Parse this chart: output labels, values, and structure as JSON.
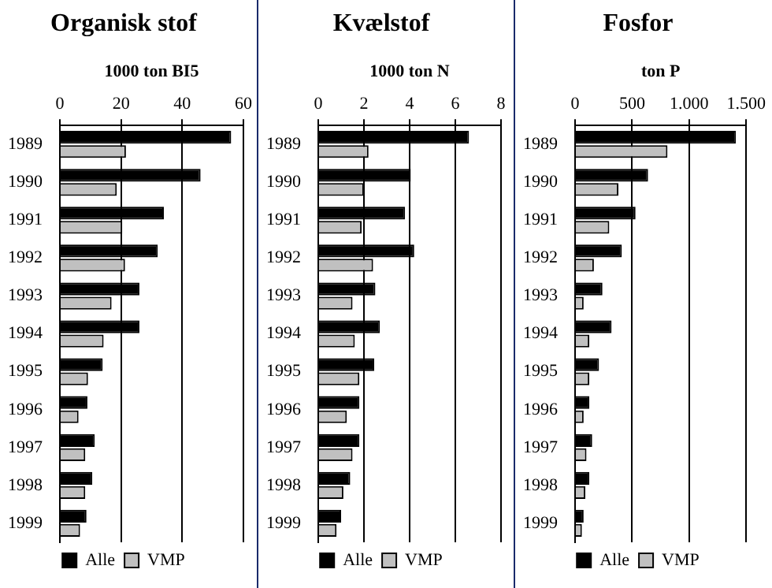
{
  "chart_data": [
    {
      "type": "bar",
      "orientation": "horizontal",
      "title": "Organisk stof",
      "xlabel": "1000 ton BI5",
      "categories": [
        "1989",
        "1990",
        "1991",
        "1992",
        "1993",
        "1994",
        "1995",
        "1996",
        "1997",
        "1998",
        "1999"
      ],
      "series": [
        {
          "name": "Alle",
          "color": "#000000",
          "values": [
            56,
            46,
            34,
            32,
            26,
            26,
            14,
            9,
            11.4,
            10.6,
            8.7
          ]
        },
        {
          "name": "VMP",
          "color": "#c0c0c0",
          "values": [
            21.6,
            18.6,
            20.4,
            21.3,
            16.9,
            14.3,
            9.2,
            6.1,
            8.3,
            8.3,
            6.6
          ]
        }
      ],
      "xlim": [
        0,
        60
      ],
      "xticks": [
        0,
        20,
        40,
        60
      ],
      "grid": "x",
      "legend": "bottom"
    },
    {
      "type": "bar",
      "orientation": "horizontal",
      "title": "Kvælstof",
      "xlabel": "1000 ton N",
      "categories": [
        "1989",
        "1990",
        "1991",
        "1992",
        "1993",
        "1994",
        "1995",
        "1996",
        "1997",
        "1998",
        "1999"
      ],
      "series": [
        {
          "name": "Alle",
          "color": "#000000",
          "values": [
            6.6,
            4.05,
            3.8,
            4.2,
            2.5,
            2.7,
            2.45,
            1.8,
            1.8,
            1.4,
            1.0
          ]
        },
        {
          "name": "VMP",
          "color": "#c0c0c0",
          "values": [
            2.2,
            2.0,
            1.9,
            2.4,
            1.5,
            1.6,
            1.8,
            1.25,
            1.5,
            1.1,
            0.8
          ]
        }
      ],
      "xlim": [
        0,
        8
      ],
      "xticks": [
        0,
        2,
        4,
        6,
        8
      ],
      "grid": "x",
      "legend": "bottom"
    },
    {
      "type": "bar",
      "orientation": "horizontal",
      "title": "Fosfor",
      "xlabel": "ton P",
      "categories": [
        "1989",
        "1990",
        "1991",
        "1992",
        "1993",
        "1994",
        "1995",
        "1996",
        "1997",
        "1998",
        "1999"
      ],
      "series": [
        {
          "name": "Alle",
          "color": "#000000",
          "values": [
            1410,
            640,
            530,
            410,
            240,
            320,
            210,
            125,
            150,
            125,
            75
          ]
        },
        {
          "name": "VMP",
          "color": "#c0c0c0",
          "values": [
            810,
            380,
            300,
            165,
            75,
            125,
            125,
            75,
            100,
            90,
            60
          ]
        }
      ],
      "xlim": [
        0,
        1500
      ],
      "xticks": [
        0,
        500,
        {
          "value": 1000,
          "label": "1.000"
        },
        {
          "value": 1500,
          "label": "1.500"
        }
      ],
      "grid": "x",
      "legend": "bottom"
    }
  ]
}
